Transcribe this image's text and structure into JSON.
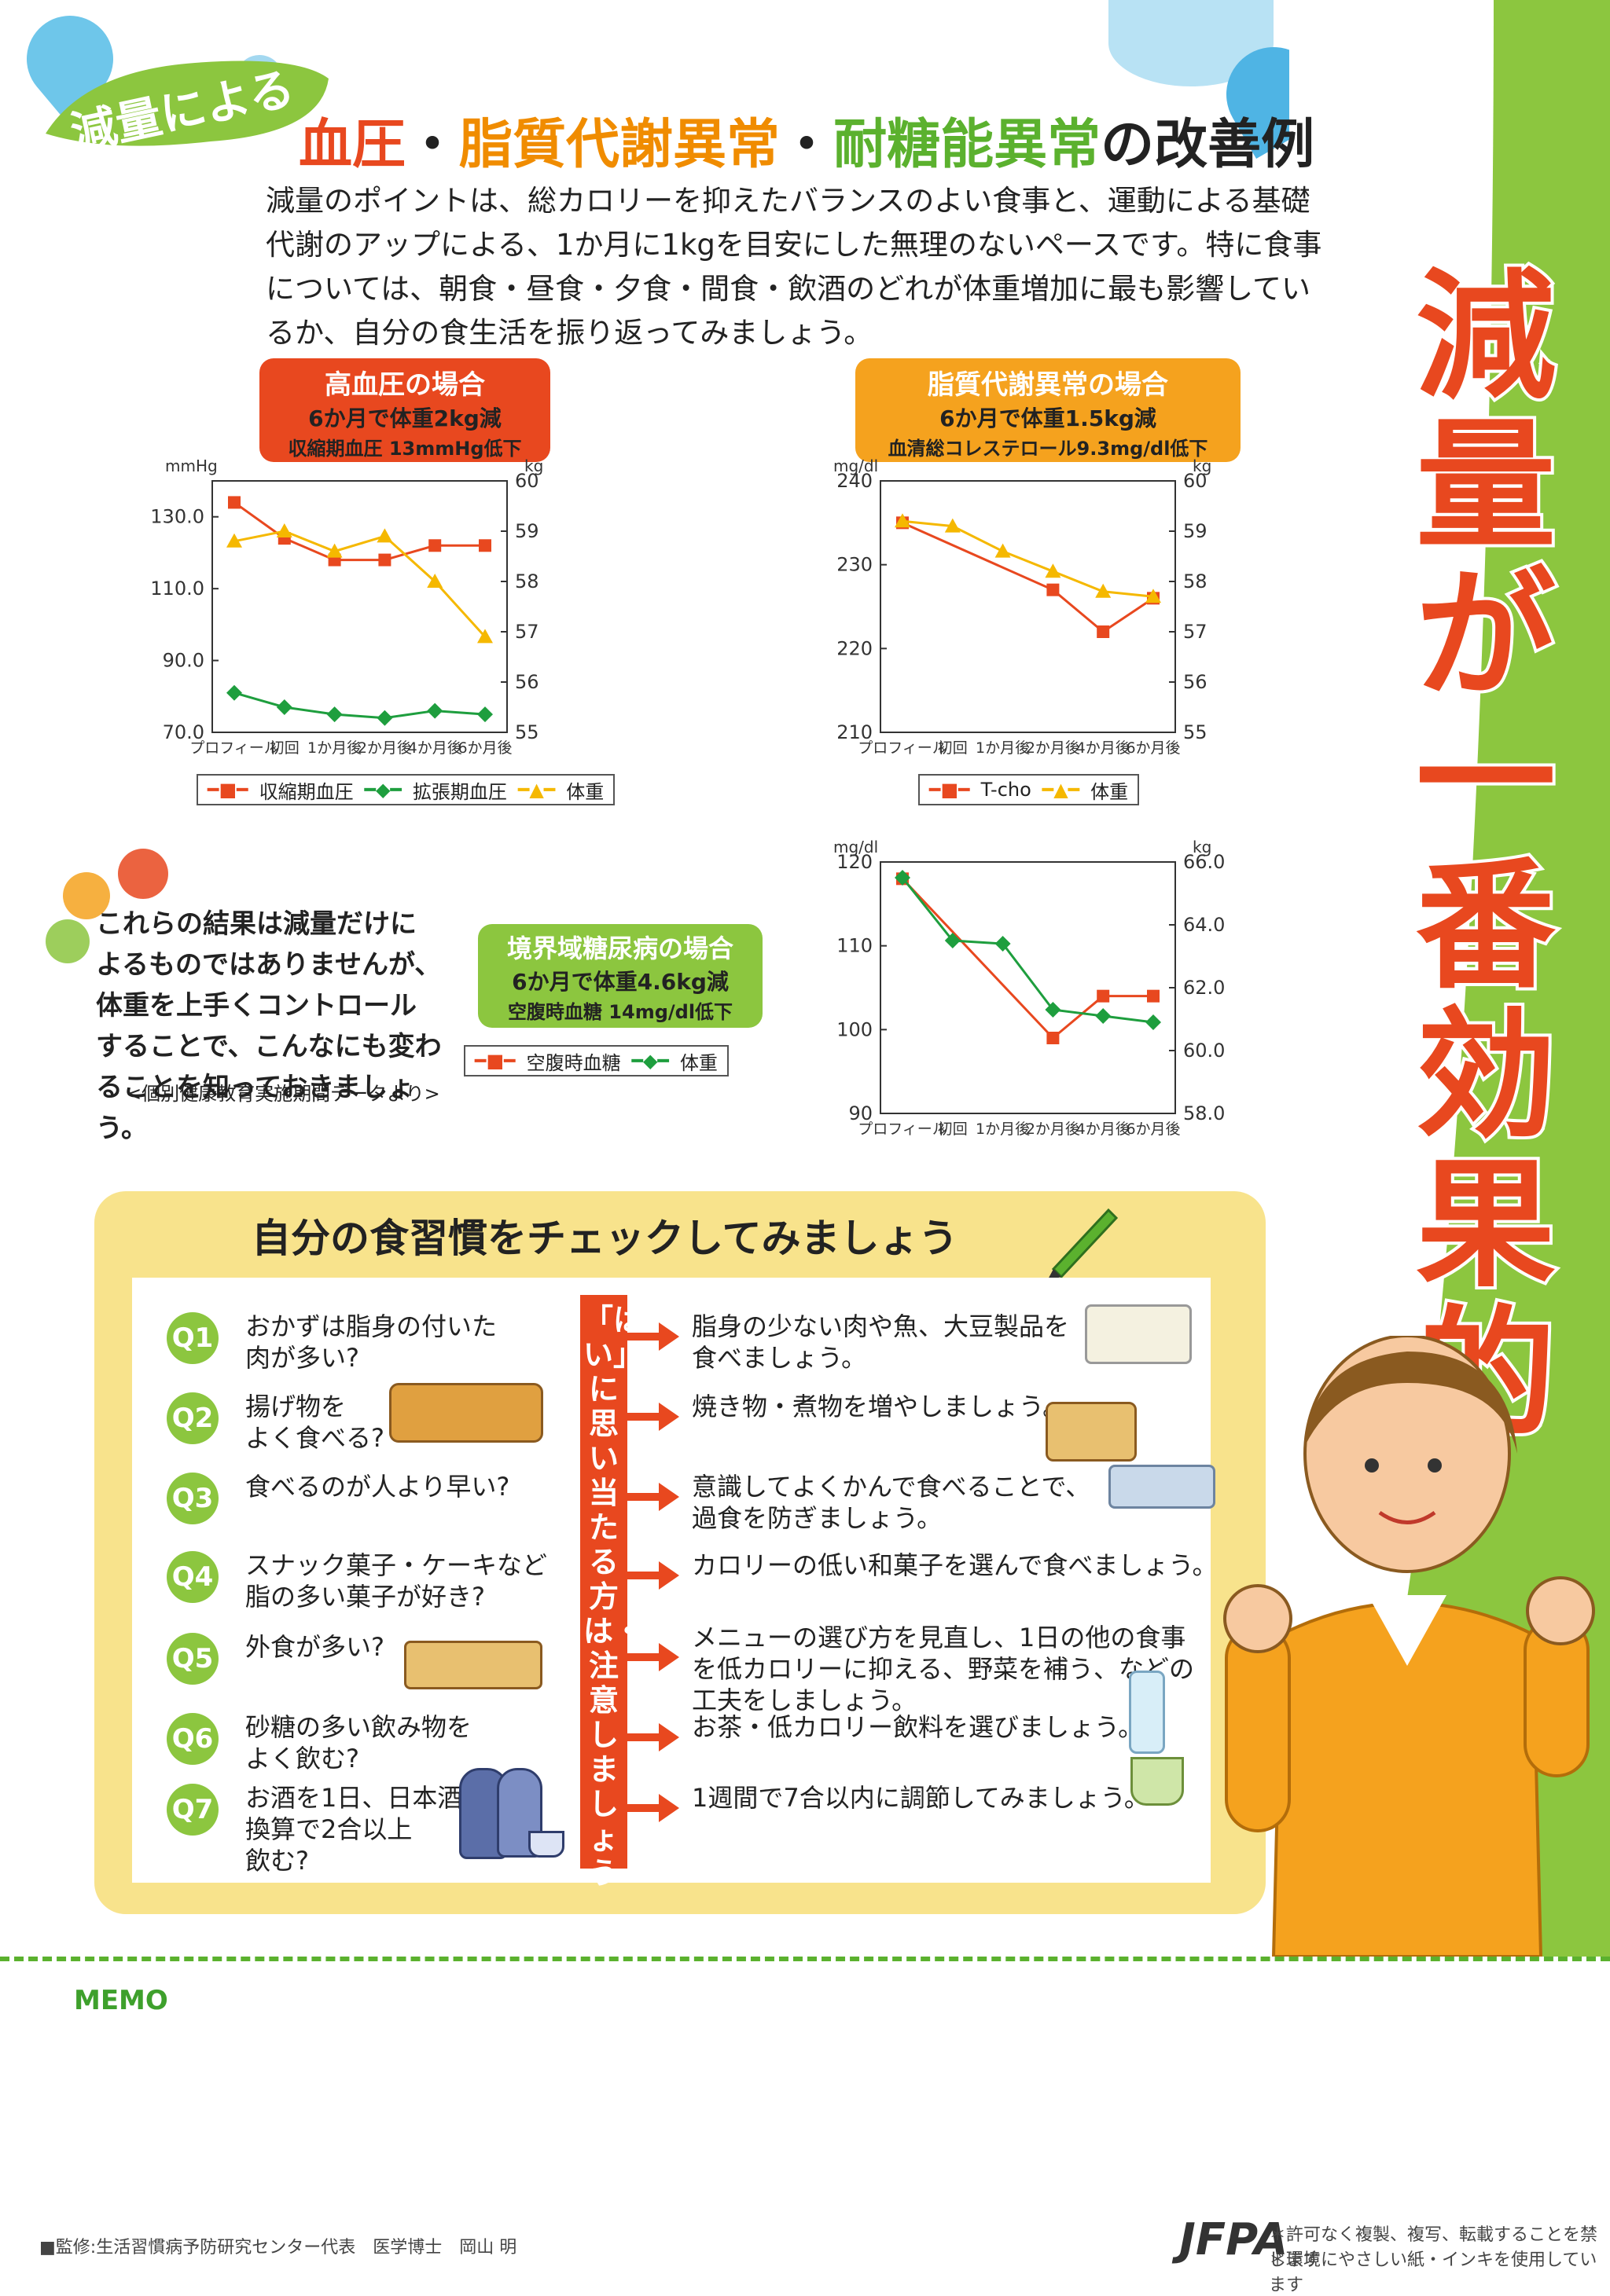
{
  "header": {
    "badge": "減量による",
    "title_parts": [
      {
        "text": "血圧",
        "color": "#e8481f"
      },
      {
        "text": "・",
        "color": "#222222"
      },
      {
        "text": "脂質代謝異常",
        "color": "#f08c00"
      },
      {
        "text": "・",
        "color": "#222222"
      },
      {
        "text": "耐糖能異常",
        "color": "#5bb12e"
      },
      {
        "text": "の改善例",
        "color": "#222222"
      }
    ],
    "intro": "減量のポイントは、総カロリーを抑えたバランスのよい食事と、運動による基礎代謝のアップによる、1か月に1kgを目安にした無理のないペースです。特に食事については、朝食・昼食・夕食・間食・飲酒のどれが体重増加に最も影響しているか、自分の食生活を振り返ってみましょう。"
  },
  "vertical_title": [
    "減",
    "量",
    "が",
    "一",
    "番",
    "効",
    "果",
    "的"
  ],
  "charts_labels": {
    "hypertension": {
      "title": "高血圧の場合",
      "line2": "6か月で体重2kg減",
      "line3": "収縮期血圧 13mmHg低下",
      "color": "#e8481f"
    },
    "lipid": {
      "title": "脂質代謝異常の場合",
      "line2": "6か月で体重1.5kg減",
      "line3": "血清総コレステロール9.3mg/dl低下",
      "color": "#f08c00"
    },
    "glucose": {
      "title": "境界域糖尿病の場合",
      "line2": "6か月で体重4.6kg減",
      "line3": "空腹時血糖 14mg/dl低下",
      "color": "#5bb12e"
    }
  },
  "chart_data": [
    {
      "type": "line",
      "title": "",
      "categories": [
        "プロフィール",
        "初回",
        "1か月後",
        "2か月後",
        "4か月後",
        "6か月後"
      ],
      "ylabel": "mmHg",
      "ylim": [
        70.0,
        140.0
      ],
      "yticks": [
        "70.0",
        "90.0",
        "110.0",
        "130.0"
      ],
      "y2label": "kg",
      "y2lim": [
        55,
        60
      ],
      "y2ticks": [
        "55",
        "56",
        "57",
        "58",
        "59",
        "60"
      ],
      "series": [
        {
          "name": "収縮期血圧",
          "axis": "left",
          "color": "#e8481f",
          "marker": "square",
          "values": [
            134,
            124,
            118,
            118,
            122,
            122
          ]
        },
        {
          "name": "拡張期血圧",
          "axis": "left",
          "color": "#1e9e3e",
          "marker": "diamond",
          "values": [
            81,
            77,
            75,
            74,
            76,
            75
          ]
        },
        {
          "name": "体重",
          "axis": "right",
          "color": "#f5b800",
          "marker": "triangle",
          "values": [
            58.8,
            59.0,
            58.6,
            58.9,
            58.0,
            56.9
          ]
        }
      ]
    },
    {
      "type": "line",
      "title": "",
      "categories": [
        "プロフィール",
        "初回",
        "1か月後",
        "2か月後",
        "4か月後",
        "6か月後"
      ],
      "ylabel": "mg/dl",
      "ylim": [
        210,
        240
      ],
      "yticks": [
        "210",
        "220",
        "230",
        "240"
      ],
      "y2label": "kg",
      "y2lim": [
        55,
        60
      ],
      "y2ticks": [
        "55",
        "56",
        "57",
        "58",
        "59",
        "60"
      ],
      "series": [
        {
          "name": "T-cho",
          "axis": "left",
          "color": "#e8481f",
          "marker": "square",
          "values": [
            235,
            null,
            null,
            227,
            222,
            226
          ]
        },
        {
          "name": "体重",
          "axis": "right",
          "color": "#f5b800",
          "marker": "triangle",
          "values": [
            59.2,
            59.1,
            58.6,
            58.2,
            57.8,
            57.7
          ]
        }
      ]
    },
    {
      "type": "line",
      "title": "",
      "categories": [
        "プロフィール",
        "初回",
        "1か月後",
        "2か月後",
        "4か月後",
        "6か月後"
      ],
      "ylabel": "mg/dl",
      "ylim": [
        90,
        120
      ],
      "yticks": [
        "90",
        "100",
        "110",
        "120"
      ],
      "y2label": "kg",
      "y2lim": [
        58.0,
        66.0
      ],
      "y2ticks": [
        "58.0",
        "60.0",
        "62.0",
        "64.0",
        "66.0"
      ],
      "series": [
        {
          "name": "空腹時血糖",
          "axis": "left",
          "color": "#e8481f",
          "marker": "square",
          "values": [
            118,
            null,
            null,
            99,
            104,
            104
          ]
        },
        {
          "name": "体重",
          "axis": "right",
          "color": "#1e9e3e",
          "marker": "diamond",
          "values": [
            65.5,
            63.5,
            63.4,
            61.3,
            61.1,
            60.9
          ]
        }
      ]
    }
  ],
  "note": "これらの結果は減量だけによるものではありませんが、体重を上手くコントロールすることで、こんなにも変わることを知っておきましょう。",
  "source": "<個別健康教育実施期間データより>",
  "check": {
    "title": "自分の食習慣をチェックしてみましょう",
    "vertical_banner": "「はい」に思い当たる方は・・・注意しましょう",
    "items": [
      {
        "q": "Q1",
        "question": [
          "おかずは脂身の付いた",
          "肉が多い?"
        ],
        "answer": [
          "脂身の少ない肉や魚、大豆製品を",
          "食べましょう。"
        ]
      },
      {
        "q": "Q2",
        "question": [
          "揚げ物を",
          "よく食べる?"
        ],
        "answer": [
          "焼き物・煮物を増やしましょう。"
        ]
      },
      {
        "q": "Q3",
        "question": [
          "食べるのが人より早い?"
        ],
        "answer": [
          "意識してよくかんで食べることで、",
          "過食を防ぎましょう。"
        ]
      },
      {
        "q": "Q4",
        "question": [
          "スナック菓子・ケーキなど",
          "脂の多い菓子が好き?"
        ],
        "answer": [
          "カロリーの低い和菓子を選んで食べましょう。"
        ]
      },
      {
        "q": "Q5",
        "question": [
          "外食が多い?"
        ],
        "answer": [
          "メニューの選び方を見直し、1日の他の食事",
          "を低カロリーに抑える、野菜を補う、などの",
          "工夫をしましょう。"
        ]
      },
      {
        "q": "Q6",
        "question": [
          "砂糖の多い飲み物を",
          "よく飲む?"
        ],
        "answer": [
          "お茶・低カロリー飲料を選びましょう。"
        ]
      },
      {
        "q": "Q7",
        "question": [
          "お酒を1日、日本酒",
          "換算で2合以上",
          "飲む?"
        ],
        "answer": [
          "1週間で7合以内に調節してみましょう。"
        ]
      }
    ]
  },
  "memo": "MEMO",
  "footer": {
    "supervisor": "■監修:生活習慣病予防研究センター代表　医学博士　岡山 明",
    "logo": "JFPA",
    "notice1": "＊許可なく複製、複写、転載することを禁じます",
    "notice2": "＊環境にやさしい紙・インキを使用しています"
  }
}
